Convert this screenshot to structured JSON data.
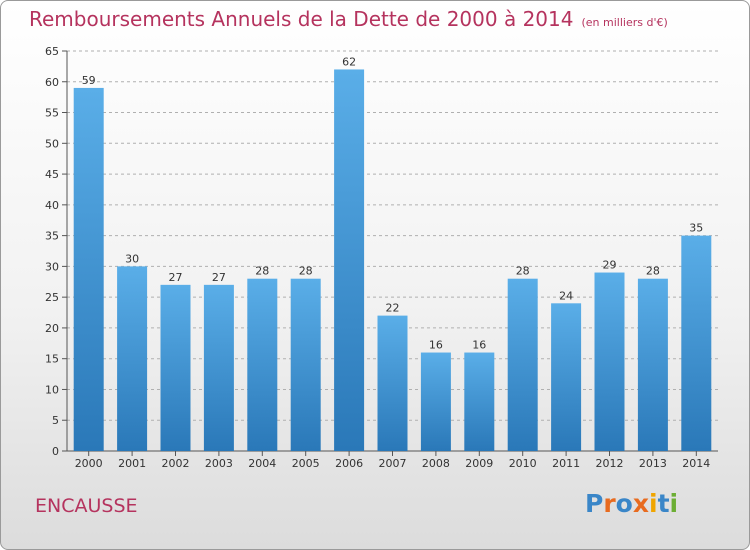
{
  "header": {
    "title": "Remboursements Annuels de la Dette de 2000 à 2014",
    "unit": "(en milliers d'€)"
  },
  "commune": "ENCAUSSE",
  "logo": "Proxiti",
  "colors": {
    "title": "#b5335e",
    "bar_top": "#5aaee8",
    "bar_bottom": "#2a78b8",
    "grid": "#b0b0b0"
  },
  "chart_data": {
    "type": "bar",
    "title": "Remboursements Annuels de la Dette de 2000 à 2014",
    "xlabel": "",
    "ylabel": "",
    "categories": [
      "2000",
      "2001",
      "2002",
      "2003",
      "2004",
      "2005",
      "2006",
      "2007",
      "2008",
      "2009",
      "2010",
      "2011",
      "2012",
      "2013",
      "2014"
    ],
    "values": [
      59,
      30,
      27,
      27,
      28,
      28,
      62,
      22,
      16,
      16,
      28,
      24,
      29,
      28,
      35
    ],
    "ylim": [
      0,
      65
    ],
    "yticks": [
      0,
      5,
      10,
      15,
      20,
      25,
      30,
      35,
      40,
      45,
      50,
      55,
      60,
      65
    ],
    "grid": true,
    "data_labels": true
  }
}
